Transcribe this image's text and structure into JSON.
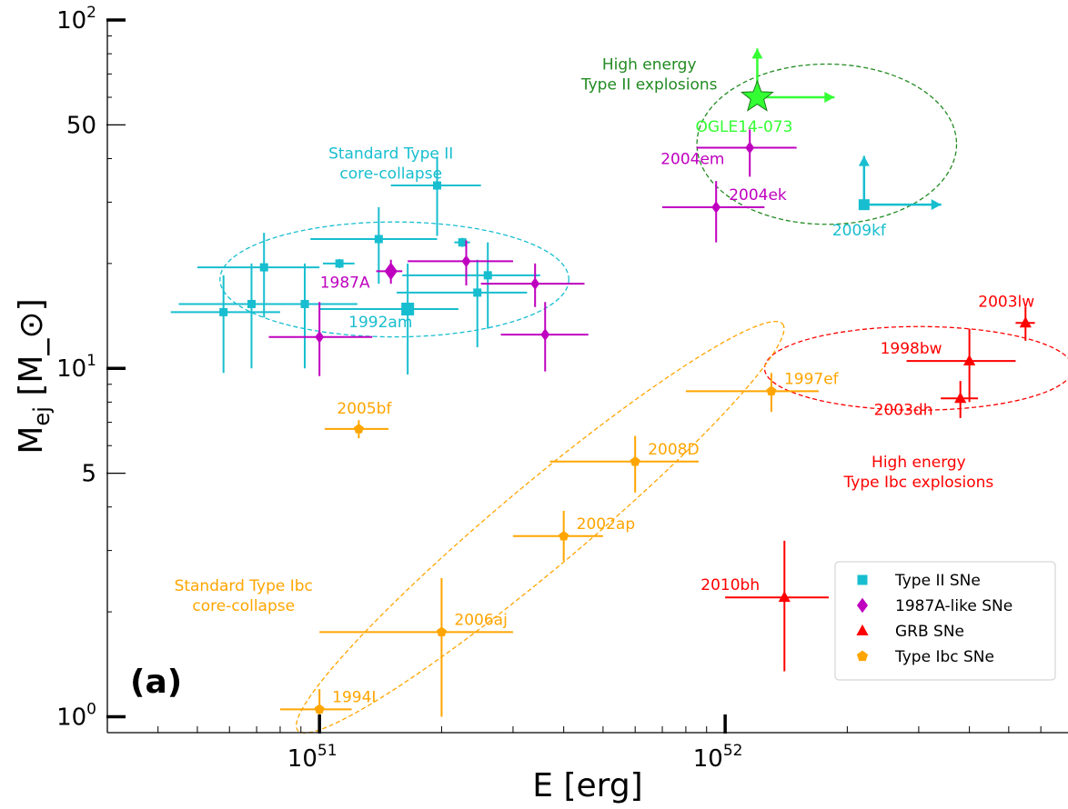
{
  "chart_data": {
    "type": "scatter",
    "panel_label": "(a)",
    "xlabel": "E [erg]",
    "ylabel": "M_ej [M_⊙]",
    "xscale": "log",
    "yscale": "log",
    "xlim": [
      3e+50,
      7e+52
    ],
    "ylim": [
      0.9,
      100
    ],
    "x_ticks": [
      {
        "value": 1e+51,
        "label": "10",
        "exp": "51"
      },
      {
        "value": 1e+52,
        "label": "10",
        "exp": "52"
      }
    ],
    "y_ticks": [
      {
        "value": 1,
        "label": "10",
        "exp": "0"
      },
      {
        "value": 5,
        "label": "5",
        "exp": ""
      },
      {
        "value": 10,
        "label": "10",
        "exp": "1"
      },
      {
        "value": 50,
        "label": "50",
        "exp": ""
      },
      {
        "value": 100,
        "label": "10",
        "exp": "2"
      }
    ],
    "legend": {
      "position": "lower-right",
      "entries": [
        {
          "label": "Type II SNe",
          "marker": "square",
          "color": "#17BECF"
        },
        {
          "label": "1987A-like SNe",
          "marker": "diamond",
          "color": "#BF00BF"
        },
        {
          "label": "GRB SNe",
          "marker": "triangle",
          "color": "#FF0000"
        },
        {
          "label": "Type Ibc SNe",
          "marker": "pentagon",
          "color": "#FFA500"
        }
      ]
    },
    "ellipses": [
      {
        "name": "Standard Type II core-collapse",
        "label_lines": [
          "Standard Type II",
          "core-collapse"
        ],
        "color": "#17BECF",
        "cx": 1.53e+51,
        "cy": 18,
        "rx_dex": 0.43,
        "ry_dex": 0.165,
        "angle": 0,
        "label_x": 1.5e+51,
        "label_y": 40,
        "anchor": "middle"
      },
      {
        "name": "High energy Type II explosions",
        "label_lines": [
          "High energy",
          "Type II explosions"
        ],
        "color": "#228B22",
        "cx": 1.78e+52,
        "cy": 44,
        "rx_dex": 0.32,
        "ry_dex": 0.23,
        "angle": 0,
        "label_x": 6.5e+51,
        "label_y": 72,
        "anchor": "middle"
      },
      {
        "name": "High energy Type Ibc explosions",
        "label_lines": [
          "High energy",
          "Type Ibc explosions"
        ],
        "color": "#FF0000",
        "cx": 3e+52,
        "cy": 10,
        "rx_dex": 0.38,
        "ry_dex": 0.12,
        "angle": 0,
        "label_x": 3e+52,
        "label_y": 5.2,
        "anchor": "middle"
      },
      {
        "name": "Standard Type Ibc core-collapse",
        "label_lines": [
          "Standard Type Ibc",
          "core-collapse"
        ],
        "color": "#FFA500",
        "cx": 3.5e+51,
        "cy": 3.5,
        "rx_dex": 0.78,
        "ry_dex": 0.12,
        "angle": -40,
        "label_x": 6.5e+50,
        "label_y": 2.3,
        "anchor": "middle"
      }
    ],
    "series": [
      {
        "name": "Type II SNe",
        "marker": "square",
        "color": "#17BECF",
        "points": [
          {
            "x": 5.8e+50,
            "y": 14.5,
            "xerr": [
              1.5e+50,
              2.2e+50
            ],
            "yerr": [
              4.8,
              4.0
            ]
          },
          {
            "x": 6.8e+50,
            "y": 15.3,
            "xerr": [
              2.3e+50,
              2.8e+50
            ],
            "yerr": [
              5.3,
              4.7
            ]
          },
          {
            "x": 7.3e+50,
            "y": 19.5,
            "xerr": [
              2.3e+50,
              2.7e+50
            ],
            "yerr": [
              5.5,
              5.0
            ]
          },
          {
            "x": 9.2e+50,
            "y": 15.3,
            "xerr": [
              2.6e+50,
              3.2e+50
            ],
            "yerr": [
              5.3,
              4.7
            ]
          },
          {
            "x": 1.12e+51,
            "y": 20,
            "xerr": [
              1e+50,
              1e+50
            ],
            "yerr": [
              0.6,
              0.6
            ]
          },
          {
            "x": 1.4e+51,
            "y": 23.5,
            "xerr": [
              4.5e+50,
              5.5e+50
            ],
            "yerr": [
              6.0,
              5.5
            ]
          },
          {
            "x": 1.95e+51,
            "y": 33.5,
            "xerr": [
              4.5e+50,
              5.5e+50
            ],
            "yerr": [
              9.5,
              7.0
            ]
          },
          {
            "x": 2.25e+51,
            "y": 23,
            "xerr": [
              1e+50,
              1e+50
            ],
            "yerr": [
              0.7,
              0.7
            ]
          },
          {
            "x": 2.45e+51,
            "y": 16.5,
            "xerr": [
              9e+50,
              8e+50
            ],
            "yerr": [
              5.0,
              4.0
            ]
          },
          {
            "x": 2.6e+51,
            "y": 18.5,
            "xerr": [
              1e+51,
              9e+50
            ],
            "yerr": [
              5.5,
              4.5
            ]
          },
          {
            "x": 1.65e+51,
            "y": 14.8,
            "xerr": [
              6.5e+50,
              5.5e+50
            ],
            "yerr": [
              5.2,
              5.2
            ],
            "label": "1992am",
            "label_dx": -65,
            "label_dy": 20,
            "size": 14
          },
          {
            "x": 2.2e+52,
            "y": 29.5,
            "xerr": [
              0,
              0
            ],
            "yerr": [
              0,
              0
            ],
            "label": "2009kf",
            "label_dx": -35,
            "label_dy": 34,
            "size": 12,
            "lower_limit_x": true,
            "lower_limit_y": true
          }
        ]
      },
      {
        "name": "1987A-like SNe",
        "marker": "diamond",
        "color": "#BF00BF",
        "points": [
          {
            "x": 1.5e+51,
            "y": 19,
            "xerr": [
              1.2e+50,
              1e+50
            ],
            "yerr": [
              1.5,
              1.5
            ],
            "label": "1987A",
            "label_dx": -78,
            "label_dy": 18,
            "size": 13
          },
          {
            "x": 1e+51,
            "y": 12.3,
            "xerr": [
              2.5e+50,
              3.5e+50
            ],
            "yerr": [
              2.8,
              3.2
            ]
          },
          {
            "x": 2.3e+51,
            "y": 20.3,
            "xerr": [
              6.5e+50,
              7e+50
            ],
            "yerr": [
              3.0,
              3.0
            ]
          },
          {
            "x": 3.4e+51,
            "y": 17.5,
            "xerr": [
              9e+50,
              1.1e+51
            ],
            "yerr": [
              2.5,
              2.5
            ]
          },
          {
            "x": 3.6e+51,
            "y": 12.5,
            "xerr": [
              8e+50,
              1e+51
            ],
            "yerr": [
              2.7,
              3.0
            ]
          },
          {
            "x": 9.5e+51,
            "y": 29,
            "xerr": [
              2.5e+51,
              3e+51
            ],
            "yerr": [
              6.0,
              5.5
            ],
            "label": "2004ek",
            "label_dx": 14,
            "label_dy": -8,
            "size": 9
          },
          {
            "x": 1.15e+52,
            "y": 43,
            "xerr": [
              3e+51,
              3.5e+51
            ],
            "yerr": [
              7.5,
              5.5
            ],
            "label": "2004em",
            "label_dx": -98,
            "label_dy": 18,
            "size": 9
          }
        ]
      },
      {
        "name": "GRB SNe",
        "marker": "triangle",
        "color": "#FF0000",
        "points": [
          {
            "x": 5.5e+52,
            "y": 13.5,
            "xerr": [
              3e+51,
              3e+51
            ],
            "yerr": [
              1.5,
              1.5
            ],
            "label": "2003lw",
            "label_dx": -52,
            "label_dy": -18,
            "size": 11
          },
          {
            "x": 4e+52,
            "y": 10.5,
            "xerr": [
              1.2e+52,
              1.2e+52
            ],
            "yerr": [
              2.5,
              2.5
            ],
            "label": "1998bw",
            "label_dx": -98,
            "label_dy": -8,
            "size": 11
          },
          {
            "x": 3.8e+52,
            "y": 8.2,
            "xerr": [
              4e+51,
              4e+51
            ],
            "yerr": [
              1.0,
              1.0
            ],
            "label": "2003dh",
            "label_dx": -95,
            "label_dy": 18,
            "size": 11
          },
          {
            "x": 1.4e+52,
            "y": 2.2,
            "xerr": [
              4e+51,
              4e+51
            ],
            "yerr": [
              0.85,
              1.0
            ],
            "label": "2010bh",
            "label_dx": -92,
            "label_dy": -8,
            "size": 11
          }
        ]
      },
      {
        "name": "Type Ibc SNe",
        "marker": "pentagon",
        "color": "#FFA500",
        "points": [
          {
            "x": 1.3e+52,
            "y": 8.6,
            "xerr": [
              5e+51,
              4e+51
            ],
            "yerr": [
              1.1,
              1.1
            ],
            "label": "1997ef",
            "label_dx": 14,
            "label_dy": -8,
            "size": 10
          },
          {
            "x": 1.25e+51,
            "y": 6.7,
            "xerr": [
              2.2e+50,
              2.3e+50
            ],
            "yerr": [
              0.4,
              0.4
            ],
            "label": "2005bf",
            "label_dx": -24,
            "label_dy": -17,
            "size": 10
          },
          {
            "x": 6e+51,
            "y": 5.4,
            "xerr": [
              2.3e+51,
              2.6e+51
            ],
            "yerr": [
              1.0,
              1.0
            ],
            "label": "2008D",
            "label_dx": 14,
            "label_dy": -8,
            "size": 10
          },
          {
            "x": 4e+51,
            "y": 3.3,
            "xerr": [
              1e+51,
              1e+51
            ],
            "yerr": [
              0.5,
              0.6
            ],
            "label": "2002ap",
            "label_dx": 14,
            "label_dy": -8,
            "size": 10
          },
          {
            "x": 2e+51,
            "y": 1.75,
            "xerr": [
              1e+51,
              1e+51
            ],
            "yerr": [
              0.75,
              0.75
            ],
            "label": "2006aj",
            "label_dx": 14,
            "label_dy": -8,
            "size": 10
          },
          {
            "x": 1e+51,
            "y": 1.05,
            "xerr": [
              2e+50,
              2e+50
            ],
            "yerr": [
              0.15,
              0.15
            ],
            "label": "1994I",
            "label_dx": 14,
            "label_dy": -8,
            "size": 10
          }
        ]
      },
      {
        "name": "OGLE14-073",
        "marker": "star",
        "color": "#33FF33",
        "points": [
          {
            "x": 1.2e+52,
            "y": 60,
            "xerr": [
              0,
              0
            ],
            "yerr": [
              0,
              0
            ],
            "label": "OGLE14-073",
            "label_dx": -68,
            "label_dy": 38,
            "size": 18,
            "lower_limit_x": true,
            "lower_limit_y": true
          }
        ]
      }
    ]
  }
}
